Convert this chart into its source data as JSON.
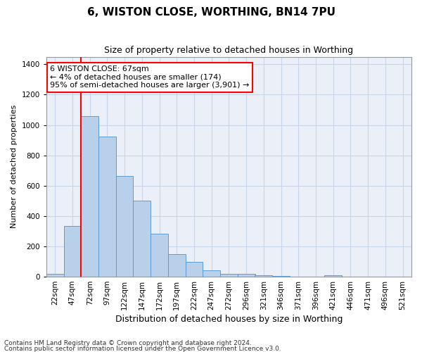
{
  "title": "6, WISTON CLOSE, WORTHING, BN14 7PU",
  "subtitle": "Size of property relative to detached houses in Worthing",
  "xlabel": "Distribution of detached houses by size in Worthing",
  "ylabel": "Number of detached properties",
  "footer_line1": "Contains HM Land Registry data © Crown copyright and database right 2024.",
  "footer_line2": "Contains public sector information licensed under the Open Government Licence v3.0.",
  "categories": [
    "22sqm",
    "47sqm",
    "72sqm",
    "97sqm",
    "122sqm",
    "147sqm",
    "172sqm",
    "197sqm",
    "222sqm",
    "247sqm",
    "272sqm",
    "296sqm",
    "321sqm",
    "346sqm",
    "371sqm",
    "396sqm",
    "421sqm",
    "446sqm",
    "471sqm",
    "496sqm",
    "521sqm"
  ],
  "values": [
    20,
    335,
    1060,
    925,
    665,
    500,
    285,
    150,
    100,
    40,
    20,
    20,
    10,
    5,
    0,
    0,
    10,
    0,
    0,
    0,
    0
  ],
  "bar_color": "#b8d0ea",
  "bar_edge_color": "#5b9bd5",
  "grid_color": "#c8d4e8",
  "bg_color": "#eaeff8",
  "red_line_x": 1.5,
  "annotation_line1": "6 WISTON CLOSE: 67sqm",
  "annotation_line2": "← 4% of detached houses are smaller (174)",
  "annotation_line3": "95% of semi-detached houses are larger (3,901) →",
  "ylim": [
    0,
    1450
  ],
  "yticks": [
    0,
    200,
    400,
    600,
    800,
    1000,
    1200,
    1400
  ],
  "title_fontsize": 11,
  "subtitle_fontsize": 9,
  "ylabel_fontsize": 8,
  "xlabel_fontsize": 9,
  "tick_fontsize": 7.5,
  "footer_fontsize": 6.5,
  "ann_fontsize": 8
}
